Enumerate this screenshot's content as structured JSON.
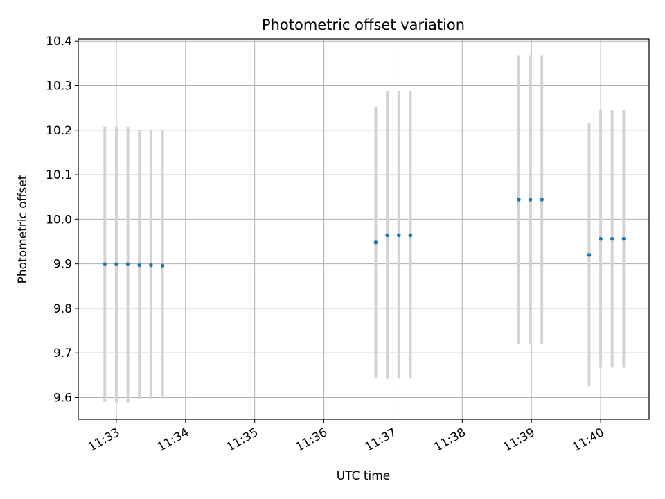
{
  "chart_data": {
    "type": "scatter",
    "title": "Photometric offset variation",
    "xlabel": "UTC time",
    "ylabel": "Photometric offset",
    "x_unit": "UTC time (HH:MM:SS)",
    "xlim": [
      "11:32:27",
      "11:40:42"
    ],
    "ylim": [
      9.551,
      10.405
    ],
    "x_ticks": [
      "11:33",
      "11:34",
      "11:35",
      "11:36",
      "11:37",
      "11:38",
      "11:39",
      "11:40"
    ],
    "y_ticks": [
      "9.6",
      "9.7",
      "9.8",
      "9.9",
      "10.0",
      "10.1",
      "10.2",
      "10.3",
      "10.4"
    ],
    "grid": true,
    "legend": "none",
    "series": [
      {
        "marker_color": "#1f77b4",
        "errorbar_color": "#d3d3d3",
        "points": [
          {
            "x": "11:32:50",
            "y": 9.899,
            "ylow": 9.59,
            "yhigh": 10.208
          },
          {
            "x": "11:33:00",
            "y": 9.899,
            "ylow": 9.589,
            "yhigh": 10.208
          },
          {
            "x": "11:33:10",
            "y": 9.899,
            "ylow": 9.589,
            "yhigh": 10.208
          },
          {
            "x": "11:33:20",
            "y": 9.897,
            "ylow": 9.597,
            "yhigh": 10.2
          },
          {
            "x": "11:33:30",
            "y": 9.897,
            "ylow": 9.597,
            "yhigh": 10.2
          },
          {
            "x": "11:33:40",
            "y": 9.896,
            "ylow": 9.598,
            "yhigh": 10.2
          },
          {
            "x": "11:36:45",
            "y": 9.948,
            "ylow": 9.644,
            "yhigh": 10.252
          },
          {
            "x": "11:36:55",
            "y": 9.964,
            "ylow": 9.642,
            "yhigh": 10.288
          },
          {
            "x": "11:37:05",
            "y": 9.964,
            "ylow": 9.642,
            "yhigh": 10.288
          },
          {
            "x": "11:37:15",
            "y": 9.964,
            "ylow": 9.642,
            "yhigh": 10.288
          },
          {
            "x": "11:38:49",
            "y": 10.044,
            "ylow": 9.721,
            "yhigh": 10.367
          },
          {
            "x": "11:38:59",
            "y": 10.044,
            "ylow": 9.721,
            "yhigh": 10.367
          },
          {
            "x": "11:39:09",
            "y": 10.044,
            "ylow": 9.721,
            "yhigh": 10.367
          },
          {
            "x": "11:39:50",
            "y": 9.92,
            "ylow": 9.625,
            "yhigh": 10.215
          },
          {
            "x": "11:40:00",
            "y": 9.956,
            "ylow": 9.667,
            "yhigh": 10.246
          },
          {
            "x": "11:40:10",
            "y": 9.956,
            "ylow": 9.667,
            "yhigh": 10.246
          },
          {
            "x": "11:40:20",
            "y": 9.956,
            "ylow": 9.667,
            "yhigh": 10.246
          }
        ]
      }
    ]
  }
}
